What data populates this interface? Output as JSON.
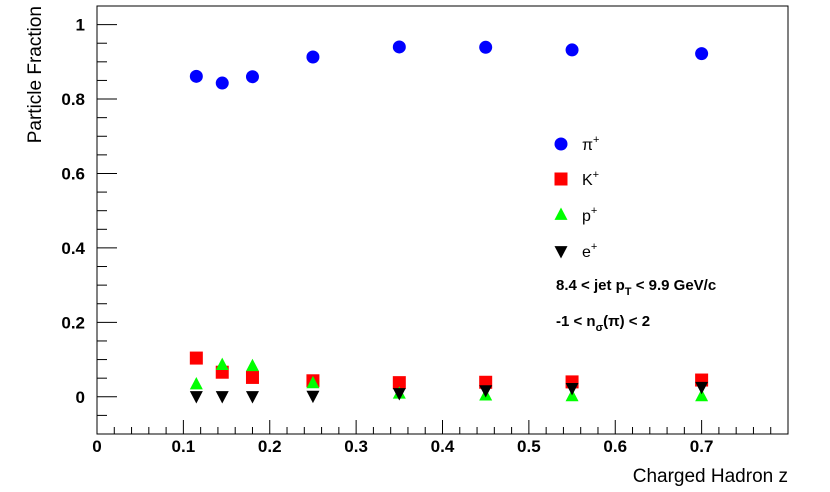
{
  "chart_data": {
    "type": "scatter",
    "xlabel": "Charged Hadron z",
    "ylabel": "Particle Fraction",
    "xlim": [
      0,
      0.8
    ],
    "ylim": [
      -0.1,
      1.05
    ],
    "x_ticks": [
      "0",
      "0.1",
      "0.2",
      "0.3",
      "0.4",
      "0.5",
      "0.6",
      "0.7"
    ],
    "y_ticks": [
      "0",
      "0.2",
      "0.4",
      "0.6",
      "0.8",
      "1"
    ],
    "x": [
      0.115,
      0.145,
      0.18,
      0.25,
      0.35,
      0.45,
      0.55,
      0.7
    ],
    "series": [
      {
        "name": "π⁺",
        "marker": "circle",
        "color": "#0000ff",
        "values": [
          0.861,
          0.843,
          0.86,
          0.913,
          0.94,
          0.939,
          0.932,
          0.922
        ]
      },
      {
        "name": "K⁺",
        "marker": "square",
        "color": "#ff0000",
        "values": [
          0.104,
          0.066,
          0.052,
          0.043,
          0.038,
          0.039,
          0.04,
          0.045
        ]
      },
      {
        "name": "p⁺",
        "marker": "triangle-up",
        "color": "#00ff00",
        "values": [
          0.033,
          0.085,
          0.082,
          0.036,
          0.008,
          0.003,
          0.001,
          0.001
        ]
      },
      {
        "name": "e⁺",
        "marker": "triangle-down",
        "color": "#000000",
        "values": [
          0.002,
          0.002,
          0.002,
          0.003,
          0.01,
          0.018,
          0.024,
          0.027
        ]
      }
    ],
    "legend_position": "right",
    "annotations": {
      "jet_pt": {
        "pre": "8.4 < jet p",
        "sub": "T",
        "post": " < 9.9 GeV/c"
      },
      "nsigma": {
        "pre": "-1 < n",
        "sub": "σ",
        "post": "(π) < 2"
      }
    },
    "grid": false
  }
}
